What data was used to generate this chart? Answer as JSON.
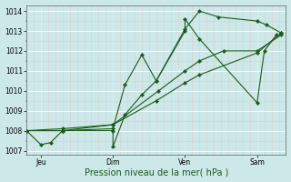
{
  "bg_color": "#cce8e8",
  "line_color": "#1a5c1a",
  "marker_color": "#1a5c1a",
  "xlabel": "Pression niveau de la mer( hPa )",
  "ylim": [
    1006.8,
    1014.3
  ],
  "yticks": [
    1007,
    1008,
    1009,
    1010,
    1011,
    1012,
    1013,
    1014
  ],
  "xlim": [
    0,
    108
  ],
  "xtick_positions": [
    6,
    36,
    66,
    96
  ],
  "xtick_labels": [
    "Jeu",
    "Dim",
    "Ven",
    "Sam"
  ],
  "vlines": [
    6,
    36,
    66,
    96
  ],
  "series": [
    {
      "x": [
        0,
        6,
        10,
        15,
        36,
        36,
        41,
        48,
        54,
        66,
        66,
        72,
        96,
        99,
        104
      ],
      "y": [
        1008.0,
        1007.3,
        1007.4,
        1008.0,
        1008.0,
        1007.2,
        1008.8,
        1009.8,
        1010.5,
        1013.0,
        1013.6,
        1012.6,
        1009.4,
        1012.0,
        1012.8
      ]
    },
    {
      "x": [
        0,
        15,
        36,
        41,
        48,
        54,
        66,
        72,
        80,
        96,
        100,
        106
      ],
      "y": [
        1008.0,
        1008.0,
        1008.1,
        1010.3,
        1011.8,
        1010.5,
        1013.1,
        1014.0,
        1013.7,
        1013.5,
        1013.3,
        1012.9
      ]
    },
    {
      "x": [
        0,
        15,
        36,
        55,
        66,
        72,
        82,
        96,
        106
      ],
      "y": [
        1008.0,
        1008.1,
        1008.3,
        1010.0,
        1011.0,
        1011.5,
        1012.0,
        1012.0,
        1012.8
      ]
    },
    {
      "x": [
        0,
        15,
        36,
        54,
        66,
        72,
        96,
        106
      ],
      "y": [
        1008.0,
        1008.0,
        1008.3,
        1009.5,
        1010.4,
        1010.8,
        1011.9,
        1012.9
      ]
    }
  ],
  "ylabel_fontsize": 5.5,
  "xlabel_fontsize": 7,
  "tick_fontsize": 5.5,
  "linewidth": 0.8,
  "markersize": 2.2,
  "grid_major_color": "#ffffff",
  "grid_minor_color": "#e8c8c8",
  "grid_major_lw": 0.6,
  "grid_minor_lw": 0.4
}
